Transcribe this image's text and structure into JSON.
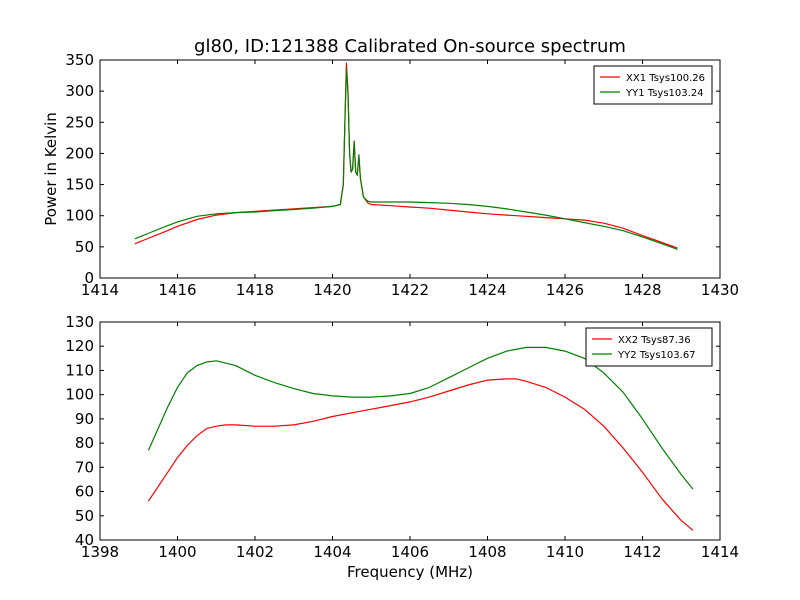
{
  "figure": {
    "title": "gl80, ID:121388 Calibrated On-source spectrum"
  },
  "chart_data": [
    {
      "type": "line",
      "title": "gl80, ID:121388 Calibrated On-source spectrum",
      "xlabel": "",
      "ylabel": "Power in Kelvin",
      "xlim": [
        1414,
        1430
      ],
      "ylim": [
        0,
        350
      ],
      "xticks": [
        "1414",
        "1416",
        "1418",
        "1420",
        "1422",
        "1424",
        "1426",
        "1428",
        "1430"
      ],
      "yticks": [
        "0",
        "50",
        "100",
        "150",
        "200",
        "250",
        "300",
        "350"
      ],
      "grid": false,
      "legend_position": "top-right",
      "series": [
        {
          "name": "XX1 Tsys100.26",
          "color": "#ff0000",
          "x": [
            1414.9,
            1415.3,
            1415.7,
            1416.0,
            1416.5,
            1417.0,
            1417.5,
            1418.0,
            1418.5,
            1419.0,
            1419.5,
            1420.0,
            1420.2,
            1420.28,
            1420.32,
            1420.36,
            1420.4,
            1420.44,
            1420.48,
            1420.52,
            1420.56,
            1420.6,
            1420.64,
            1420.68,
            1420.72,
            1420.76,
            1420.8,
            1420.86,
            1420.92,
            1421.0,
            1421.5,
            1422.0,
            1422.5,
            1423.0,
            1423.5,
            1424.0,
            1424.5,
            1425.0,
            1425.5,
            1426.0,
            1426.5,
            1427.0,
            1427.5,
            1428.0,
            1428.5,
            1428.9
          ],
          "values": [
            55,
            65,
            75,
            83,
            94,
            101,
            105,
            107,
            109,
            111,
            113,
            115,
            118,
            150,
            250,
            345,
            300,
            200,
            170,
            175,
            220,
            170,
            165,
            195,
            160,
            145,
            130,
            125,
            120,
            118,
            116,
            114,
            112,
            109,
            106,
            103,
            101,
            99,
            97,
            95,
            93,
            88,
            80,
            68,
            57,
            48
          ]
        },
        {
          "name": "YY1 Tsys103.24",
          "color": "#008000",
          "x": [
            1414.9,
            1415.3,
            1415.7,
            1416.0,
            1416.5,
            1417.0,
            1417.5,
            1418.0,
            1418.5,
            1419.0,
            1419.5,
            1420.0,
            1420.2,
            1420.28,
            1420.32,
            1420.36,
            1420.4,
            1420.44,
            1420.48,
            1420.52,
            1420.56,
            1420.6,
            1420.64,
            1420.68,
            1420.72,
            1420.76,
            1420.8,
            1420.86,
            1420.92,
            1421.0,
            1421.5,
            1422.0,
            1422.5,
            1423.0,
            1423.5,
            1424.0,
            1424.5,
            1425.0,
            1425.5,
            1426.0,
            1426.5,
            1427.0,
            1427.5,
            1428.0,
            1428.5,
            1428.9
          ],
          "values": [
            63,
            73,
            83,
            90,
            99,
            103,
            105,
            106,
            108,
            110,
            112,
            115,
            118,
            150,
            250,
            335,
            295,
            200,
            170,
            175,
            218,
            170,
            165,
            198,
            160,
            145,
            130,
            126,
            123,
            122,
            122,
            122,
            121,
            120,
            118,
            115,
            111,
            106,
            101,
            95,
            89,
            83,
            76,
            66,
            55,
            46
          ]
        }
      ]
    },
    {
      "type": "line",
      "title": "",
      "xlabel": "Frequency (MHz)",
      "ylabel": "",
      "xlim": [
        1398,
        1414
      ],
      "ylim": [
        40,
        130
      ],
      "xticks": [
        "1398",
        "1400",
        "1402",
        "1404",
        "1406",
        "1408",
        "1410",
        "1412",
        "1414"
      ],
      "yticks": [
        "40",
        "50",
        "60",
        "70",
        "80",
        "90",
        "100",
        "110",
        "120",
        "130"
      ],
      "grid": false,
      "legend_position": "top-right",
      "series": [
        {
          "name": "XX2 Tsys87.36",
          "color": "#ff0000",
          "x": [
            1399.25,
            1399.5,
            1399.75,
            1400.0,
            1400.25,
            1400.5,
            1400.75,
            1401.0,
            1401.25,
            1401.5,
            1402.0,
            1402.5,
            1403.0,
            1403.5,
            1404.0,
            1404.5,
            1405.0,
            1405.5,
            1406.0,
            1406.5,
            1407.0,
            1407.5,
            1408.0,
            1408.5,
            1408.75,
            1409.0,
            1409.5,
            1410.0,
            1410.5,
            1411.0,
            1411.5,
            1412.0,
            1412.5,
            1413.0,
            1413.3
          ],
          "values": [
            56,
            62,
            68,
            74,
            79,
            83,
            86,
            87,
            87.5,
            87.5,
            87,
            87,
            87.5,
            89,
            91,
            92.5,
            94,
            95.5,
            97,
            99,
            101.5,
            104,
            106,
            106.5,
            106.5,
            105.5,
            103,
            99,
            94,
            87,
            78,
            68,
            57,
            48,
            44
          ]
        },
        {
          "name": "YY2 Tsys103.67",
          "color": "#008000",
          "x": [
            1399.25,
            1399.5,
            1399.75,
            1400.0,
            1400.25,
            1400.5,
            1400.75,
            1401.0,
            1401.25,
            1401.5,
            1401.75,
            1402.0,
            1402.5,
            1403.0,
            1403.5,
            1404.0,
            1404.5,
            1405.0,
            1405.5,
            1406.0,
            1406.5,
            1407.0,
            1407.5,
            1408.0,
            1408.5,
            1409.0,
            1409.5,
            1410.0,
            1410.5,
            1411.0,
            1411.5,
            1412.0,
            1412.5,
            1413.0,
            1413.3
          ],
          "values": [
            77,
            86,
            95,
            103,
            109,
            112,
            113.5,
            114,
            113,
            112,
            110,
            108,
            105,
            102.5,
            100.5,
            99.5,
            99,
            99,
            99.5,
            100.5,
            103,
            107,
            111,
            115,
            118,
            119.5,
            119.5,
            118,
            115,
            109,
            101,
            90,
            78,
            67,
            61
          ]
        }
      ]
    }
  ]
}
